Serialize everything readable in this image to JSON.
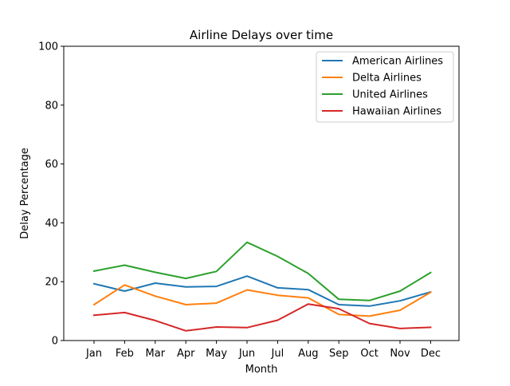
{
  "chart_data": {
    "type": "line",
    "title": "Airline Delays over time",
    "xlabel": "Month",
    "ylabel": "Delay Percentage",
    "ylim": [
      0,
      100
    ],
    "yticks": [
      0,
      20,
      40,
      60,
      80,
      100
    ],
    "grid": false,
    "legend_position": "top-right",
    "categories": [
      "Jan",
      "Feb",
      "Mar",
      "Apr",
      "May",
      "Jun",
      "Jul",
      "Aug",
      "Sep",
      "Oct",
      "Nov",
      "Dec"
    ],
    "series": [
      {
        "name": "American Airlines",
        "color": "#1f77b4",
        "values": [
          19.3,
          16.8,
          19.5,
          18.2,
          18.4,
          21.9,
          17.9,
          17.3,
          12.2,
          11.7,
          13.5,
          16.5
        ]
      },
      {
        "name": "Delta Airlines",
        "color": "#ff7f0e",
        "values": [
          12.2,
          18.9,
          15.1,
          12.2,
          12.7,
          17.2,
          15.4,
          14.5,
          8.9,
          8.3,
          10.3,
          16.4
        ]
      },
      {
        "name": "United Airlines",
        "color": "#2ca02c",
        "values": [
          23.6,
          25.6,
          23.2,
          21.1,
          23.5,
          33.4,
          28.6,
          22.8,
          14.0,
          13.6,
          16.8,
          23.1
        ]
      },
      {
        "name": "Hawaiian Airlines",
        "color": "#d62728",
        "values": [
          8.6,
          9.5,
          6.8,
          3.3,
          4.6,
          4.4,
          6.9,
          12.4,
          10.8,
          5.8,
          4.1,
          4.5
        ]
      }
    ]
  }
}
